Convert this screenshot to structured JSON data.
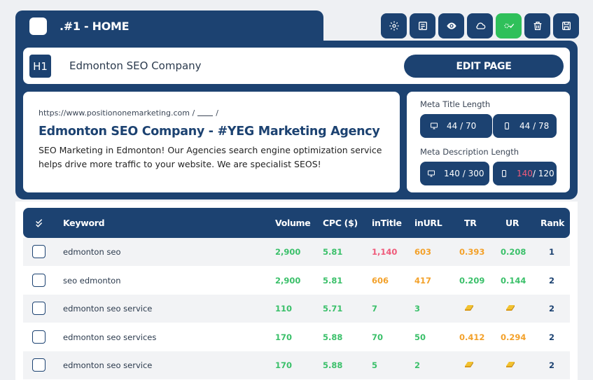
{
  "header": {
    "title": ".#1 - HOME"
  },
  "toolbar": {
    "buttons": [
      "gear-icon",
      "notes-icon",
      "eye-icon",
      "cloud-icon",
      "approve-icon",
      "trash-icon",
      "save-icon"
    ]
  },
  "h1": {
    "badge": "H1",
    "text": "Edmonton SEO Company",
    "edit_label": "EDIT PAGE"
  },
  "serp": {
    "url": "https://www.positiononemarketing.com /",
    "url_end": "/",
    "title": "Edmonton SEO Company - #YEG Marketing Agency",
    "description": "SEO Marketing in Edmonton! Our Agencies search engine optimization service helps drive more traffic to your website. We are specialist SEOS!"
  },
  "meta": {
    "title_label": "Meta Title Length",
    "title_desktop": "44 / 70",
    "title_mobile": "44 / 78",
    "desc_label": "Meta Description Length",
    "desc_desktop": "140 / 300",
    "desc_mobile_value": "140",
    "desc_mobile_limit": " / 120"
  },
  "table": {
    "headers": {
      "keyword": "Keyword",
      "volume": "Volume",
      "cpc": "CPC ($)",
      "intitle": "inTitle",
      "inurl": "inURL",
      "tr": "TR",
      "ur": "UR",
      "rank": "Rank"
    },
    "rows": [
      {
        "keyword": "edmonton seo",
        "volume": "2,900",
        "cpc": "5.81",
        "intitle": "1,140",
        "inurl": "603",
        "tr": "0.393",
        "ur": "0.208",
        "rank": "1"
      },
      {
        "keyword": "seo edmonton",
        "volume": "2,900",
        "cpc": "5.81",
        "intitle": "606",
        "inurl": "417",
        "tr": "0.209",
        "ur": "0.144",
        "rank": "2"
      },
      {
        "keyword": "edmonton seo service",
        "volume": "110",
        "cpc": "5.71",
        "intitle": "7",
        "inurl": "3",
        "tr": "gold-bar-icon",
        "ur": "gold-bar-icon",
        "rank": "2"
      },
      {
        "keyword": "edmonton seo services",
        "volume": "170",
        "cpc": "5.88",
        "intitle": "70",
        "inurl": "50",
        "tr": "0.412",
        "ur": "0.294",
        "rank": "2"
      },
      {
        "keyword": "edmonton seo service",
        "volume": "170",
        "cpc": "5.88",
        "intitle": "5",
        "inurl": "2",
        "tr": "gold-bar-icon",
        "ur": "gold-bar-icon",
        "rank": "2"
      }
    ]
  },
  "colors": {
    "navy": "#1c4271",
    "green": "#3bc06a",
    "red": "#ef5a7a",
    "orange": "#f3a12a",
    "approve_green": "#2fc05a"
  }
}
